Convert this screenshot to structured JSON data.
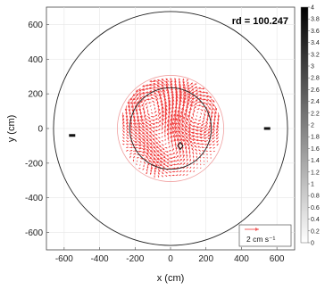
{
  "chart_data": {
    "type": "vector-field",
    "title": "",
    "xlabel": "x (cm)",
    "ylabel": "y (cm)",
    "xlim": [
      -700,
      700
    ],
    "ylim": [
      -700,
      700
    ],
    "xticks": [
      -600,
      -400,
      -200,
      0,
      200,
      400,
      600
    ],
    "yticks": [
      -600,
      -400,
      -200,
      0,
      200,
      400,
      600
    ],
    "grid": true,
    "annotation": "rd = 100.247",
    "legend": {
      "position": "bottom-right",
      "label": "2 cm s⁻¹",
      "color": "#f06060"
    },
    "colorbar": {
      "min": 0,
      "max": 4,
      "ticks": [
        0,
        0.2,
        0.4,
        0.6,
        0.8,
        1,
        1.2,
        1.4,
        1.6,
        1.8,
        2,
        2.2,
        2.4,
        2.6,
        2.8,
        3,
        3.2,
        3.4,
        3.6,
        3.8,
        4
      ],
      "tick_labels": [
        "0",
        "0.2",
        "0.4",
        "0.6",
        "0.8",
        "1",
        "1.2",
        "1.4",
        "1.6",
        "1.8",
        "2",
        "2.2",
        "2.4",
        "2.6",
        "2.8",
        "3",
        "3.2",
        "3.4",
        "3.6",
        "3.8",
        "4"
      ],
      "colormap": "gray-reversed"
    },
    "circles": [
      {
        "name": "tank",
        "cx": 0,
        "cy": 0,
        "r": 660,
        "color": "#222222"
      },
      {
        "name": "measurement-region",
        "cx": 0,
        "cy": 0,
        "r": 300,
        "color": "#f0a0a0"
      },
      {
        "name": "inner-region",
        "cx": 0,
        "cy": 0,
        "r": 230,
        "color": "#222222"
      }
    ],
    "markers": [
      {
        "name": "left-source",
        "x": -555,
        "y": -40
      },
      {
        "name": "right-source",
        "x": 545,
        "y": 0
      }
    ],
    "diamond": {
      "x": 55,
      "y": -100
    },
    "vortices": [
      {
        "x": -90,
        "y": 120,
        "r": 160,
        "gamma": 1.6
      },
      {
        "x": 130,
        "y": 80,
        "r": 150,
        "gamma": -1.4
      },
      {
        "x": -20,
        "y": -110,
        "r": 130,
        "gamma": 1.0
      },
      {
        "x": -150,
        "y": -180,
        "r": 100,
        "gamma": -0.8
      }
    ],
    "vector_color": "#f03838",
    "vector_grid_spacing": 20,
    "vector_max_radius": 290
  }
}
